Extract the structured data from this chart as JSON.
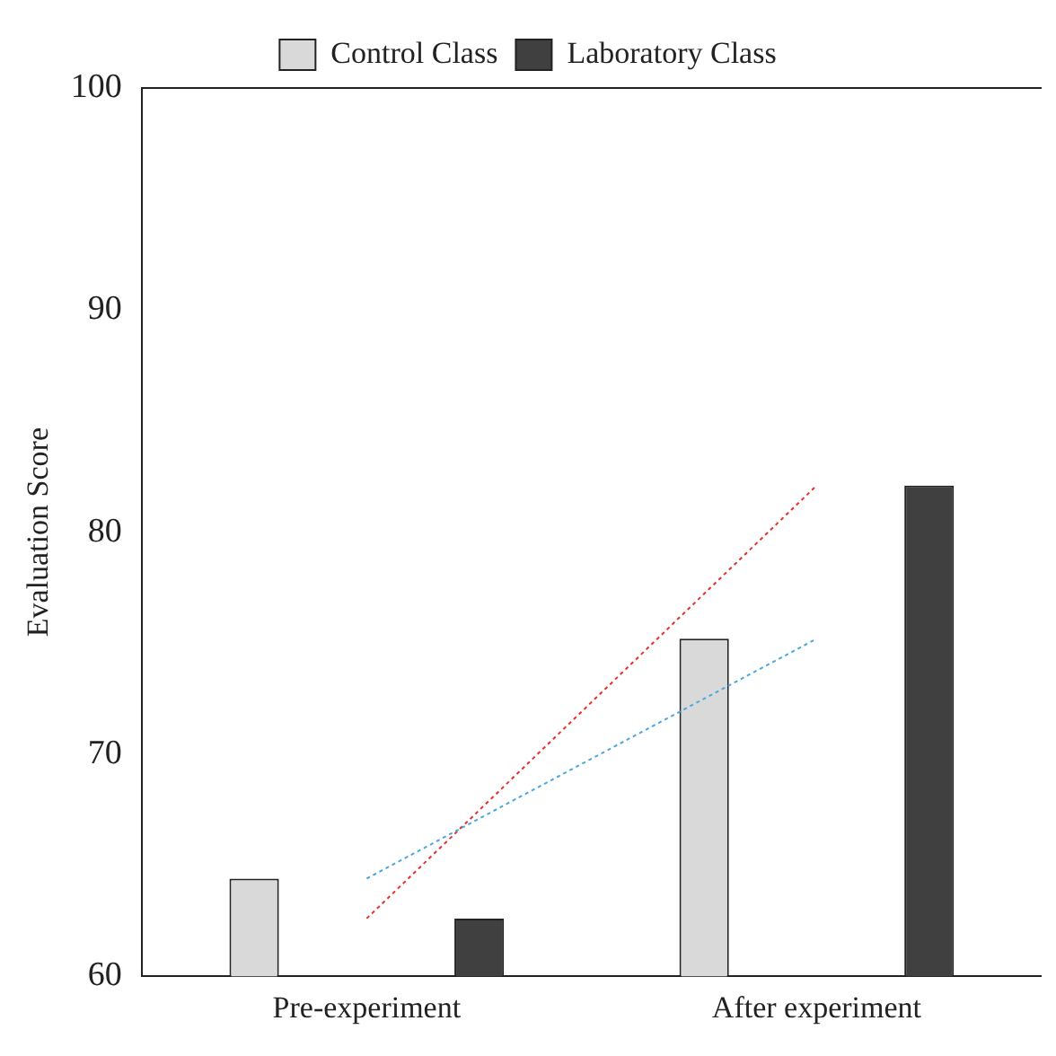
{
  "chart_data": {
    "type": "bar",
    "ylabel": "Evaluation Score",
    "categories": [
      "Pre-experiment",
      "After experiment"
    ],
    "series": [
      {
        "name": "Control Class",
        "color": "#d9d9d9",
        "values": [
          64.4,
          75.2
        ]
      },
      {
        "name": "Laboratory Class",
        "color": "#404040",
        "values": [
          62.6,
          82.1
        ]
      },
      {
        "type": "line",
        "color": "#4aa8d8",
        "line_style": "dotted",
        "values": [
          64.4,
          75.2
        ]
      },
      {
        "type": "line",
        "color": "#e8302a",
        "line_style": "dotted",
        "values": [
          62.6,
          82.1
        ]
      }
    ],
    "ylim": [
      60,
      100
    ],
    "yticks": [
      60,
      70,
      80,
      90,
      100
    ],
    "grid": false,
    "legend": "top"
  }
}
